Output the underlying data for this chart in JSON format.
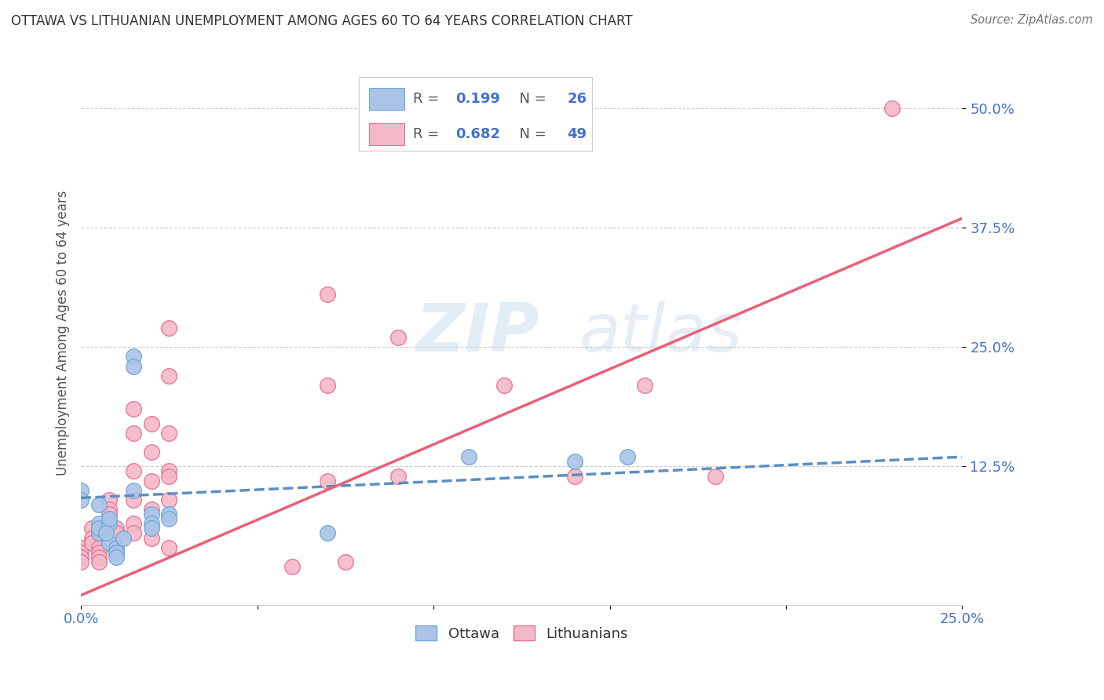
{
  "title": "OTTAWA VS LITHUANIAN UNEMPLOYMENT AMONG AGES 60 TO 64 YEARS CORRELATION CHART",
  "source": "Source: ZipAtlas.com",
  "ylabel": "Unemployment Among Ages 60 to 64 years",
  "watermark": "ZIPatlas",
  "xlim": [
    0.0,
    0.25
  ],
  "ylim": [
    -0.02,
    0.55
  ],
  "xtick_pos": [
    0.0,
    0.05,
    0.1,
    0.15,
    0.2,
    0.25
  ],
  "xtick_labels": [
    "0.0%",
    "",
    "",
    "",
    "",
    "25.0%"
  ],
  "ytick_vals": [
    0.125,
    0.25,
    0.375,
    0.5
  ],
  "ytick_labels": [
    "12.5%",
    "25.0%",
    "37.5%",
    "50.0%"
  ],
  "ottawa_color": "#aac4e8",
  "ottawa_edge": "#6fa8d4",
  "lithuanian_color": "#f4b8c8",
  "lithuanian_edge": "#e87090",
  "ottawa_line_color": "#5b8fc4",
  "lithuanian_line_color": "#e8607a",
  "ottawa_R": "0.199",
  "ottawa_N": "26",
  "lithuanian_R": "0.682",
  "lithuanian_N": "49",
  "legend_text_color": "#333333",
  "legend_value_color": "#4472c4",
  "ottawa_scatter": [
    [
      0.0,
      0.1
    ],
    [
      0.0,
      0.09
    ],
    [
      0.005,
      0.055
    ],
    [
      0.005,
      0.065
    ],
    [
      0.005,
      0.085
    ],
    [
      0.005,
      0.06
    ],
    [
      0.008,
      0.065
    ],
    [
      0.008,
      0.07
    ],
    [
      0.008,
      0.045
    ],
    [
      0.01,
      0.04
    ],
    [
      0.01,
      0.035
    ],
    [
      0.01,
      0.03
    ],
    [
      0.015,
      0.24
    ],
    [
      0.015,
      0.23
    ],
    [
      0.015,
      0.1
    ],
    [
      0.02,
      0.075
    ],
    [
      0.02,
      0.065
    ],
    [
      0.02,
      0.06
    ],
    [
      0.025,
      0.075
    ],
    [
      0.025,
      0.07
    ],
    [
      0.007,
      0.055
    ],
    [
      0.012,
      0.05
    ],
    [
      0.07,
      0.055
    ],
    [
      0.11,
      0.135
    ],
    [
      0.14,
      0.13
    ],
    [
      0.155,
      0.135
    ]
  ],
  "lithuanian_scatter": [
    [
      0.0,
      0.04
    ],
    [
      0.0,
      0.035
    ],
    [
      0.0,
      0.03
    ],
    [
      0.0,
      0.025
    ],
    [
      0.003,
      0.06
    ],
    [
      0.003,
      0.05
    ],
    [
      0.003,
      0.045
    ],
    [
      0.005,
      0.055
    ],
    [
      0.005,
      0.04
    ],
    [
      0.005,
      0.035
    ],
    [
      0.005,
      0.03
    ],
    [
      0.005,
      0.025
    ],
    [
      0.008,
      0.09
    ],
    [
      0.008,
      0.08
    ],
    [
      0.008,
      0.075
    ],
    [
      0.01,
      0.06
    ],
    [
      0.01,
      0.055
    ],
    [
      0.01,
      0.04
    ],
    [
      0.01,
      0.035
    ],
    [
      0.015,
      0.185
    ],
    [
      0.015,
      0.16
    ],
    [
      0.015,
      0.12
    ],
    [
      0.015,
      0.09
    ],
    [
      0.015,
      0.065
    ],
    [
      0.015,
      0.055
    ],
    [
      0.02,
      0.17
    ],
    [
      0.02,
      0.14
    ],
    [
      0.02,
      0.11
    ],
    [
      0.02,
      0.08
    ],
    [
      0.02,
      0.05
    ],
    [
      0.025,
      0.27
    ],
    [
      0.025,
      0.22
    ],
    [
      0.025,
      0.16
    ],
    [
      0.025,
      0.12
    ],
    [
      0.025,
      0.115
    ],
    [
      0.025,
      0.09
    ],
    [
      0.025,
      0.04
    ],
    [
      0.07,
      0.305
    ],
    [
      0.07,
      0.21
    ],
    [
      0.07,
      0.11
    ],
    [
      0.075,
      0.025
    ],
    [
      0.09,
      0.26
    ],
    [
      0.09,
      0.115
    ],
    [
      0.12,
      0.21
    ],
    [
      0.14,
      0.115
    ],
    [
      0.16,
      0.21
    ],
    [
      0.18,
      0.115
    ],
    [
      0.23,
      0.5
    ],
    [
      0.06,
      0.02
    ]
  ],
  "ottawa_line": {
    "x0": 0.0,
    "y0": 0.092,
    "x1": 0.25,
    "y1": 0.135
  },
  "lithuanian_line": {
    "x0": 0.0,
    "y0": -0.01,
    "x1": 0.25,
    "y1": 0.385
  }
}
